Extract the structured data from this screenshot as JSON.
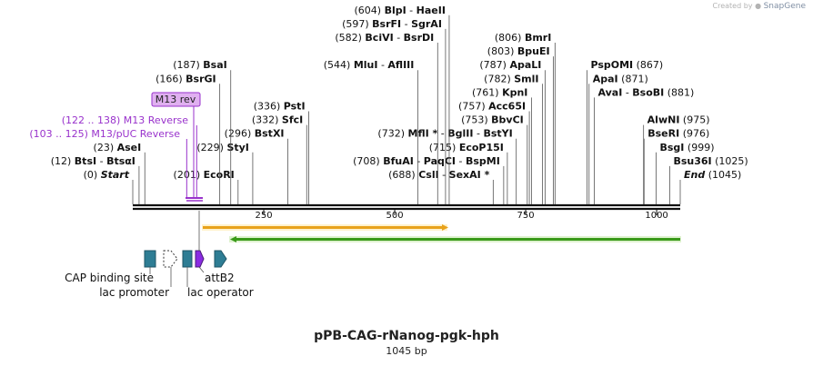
{
  "header": {
    "credit_prefix": "Created by",
    "credit_brand": "SnapGene"
  },
  "plasmid": {
    "name": "pPB-CAG-rNanog-pgk-hph",
    "length_label": "1045 bp",
    "length": 1045
  },
  "colors": {
    "feature_blue": "#2e7d94",
    "operator_purple": "#8a2be2",
    "primer_purple": "#9932cc",
    "primer_box_fill": "#e0b0f0",
    "orange_arrow": "#e8a21b",
    "green_arrow": "#3a9a1a",
    "text": "#111111"
  },
  "ruler": {
    "ticks": [
      {
        "bp": 250,
        "label": "250"
      },
      {
        "bp": 500,
        "label": "500"
      },
      {
        "bp": 750,
        "label": "750"
      },
      {
        "bp": 1000,
        "label": "1000"
      }
    ]
  },
  "enzymes": [
    {
      "id": "start",
      "bp": 0,
      "pos": "(0)",
      "names": [
        "Start"
      ],
      "italic": true,
      "side": "left",
      "row": 0
    },
    {
      "id": "btsi",
      "bp": 12,
      "pos": "(12)",
      "names": [
        "BtsI",
        "BtsαI"
      ],
      "side": "left",
      "row": 1
    },
    {
      "id": "asei",
      "bp": 23,
      "pos": "(23)",
      "names": [
        "AseI"
      ],
      "side": "left",
      "row": 2
    },
    {
      "id": "ecori",
      "bp": 201,
      "pos": "(201)",
      "names": [
        "EcoRI"
      ],
      "side": "left",
      "row": 0
    },
    {
      "id": "styi",
      "bp": 229,
      "pos": "(229)",
      "names": [
        "StyI"
      ],
      "side": "left",
      "row": 2
    },
    {
      "id": "bstxi",
      "bp": 296,
      "pos": "(296)",
      "names": [
        "BstXI"
      ],
      "side": "left",
      "row": 3
    },
    {
      "id": "bsrgi",
      "bp": 166,
      "pos": "(166)",
      "names": [
        "BsrGI"
      ],
      "side": "left",
      "row": 7
    },
    {
      "id": "bsai",
      "bp": 187,
      "pos": "(187)",
      "names": [
        "BsaI"
      ],
      "side": "left",
      "row": 8
    },
    {
      "id": "sfci",
      "bp": 332,
      "pos": "(332)",
      "names": [
        "SfcI"
      ],
      "side": "left",
      "row": 4
    },
    {
      "id": "psti",
      "bp": 336,
      "pos": "(336)",
      "names": [
        "PstI"
      ],
      "side": "left",
      "row": 5
    },
    {
      "id": "csli",
      "bp": 688,
      "pos": "(688)",
      "names": [
        "CslI",
        "SexAI *"
      ],
      "side": "left",
      "row": 0
    },
    {
      "id": "bfuai",
      "bp": 708,
      "pos": "(708)",
      "names": [
        "BfuAI",
        "PaqCI",
        "BspMI"
      ],
      "side": "left",
      "row": 1
    },
    {
      "id": "ecop15i",
      "bp": 715,
      "pos": "(715)",
      "names": [
        "EcoP15I"
      ],
      "side": "left",
      "row": 2
    },
    {
      "id": "mfli",
      "bp": 732,
      "pos": "(732)",
      "names": [
        "MflI *",
        "BglII",
        "BstYI"
      ],
      "side": "left",
      "row": 3
    },
    {
      "id": "bbvci",
      "bp": 753,
      "pos": "(753)",
      "names": [
        "BbvCI"
      ],
      "side": "left",
      "row": 4
    },
    {
      "id": "acc65i",
      "bp": 757,
      "pos": "(757)",
      "names": [
        "Acc65I"
      ],
      "side": "left",
      "row": 5
    },
    {
      "id": "kpni",
      "bp": 761,
      "pos": "(761)",
      "names": [
        "KpnI"
      ],
      "side": "left",
      "row": 6
    },
    {
      "id": "smli",
      "bp": 782,
      "pos": "(782)",
      "names": [
        "SmlI"
      ],
      "side": "left",
      "row": 7
    },
    {
      "id": "apali",
      "bp": 787,
      "pos": "(787)",
      "names": [
        "ApaLI"
      ],
      "side": "left",
      "row": 8
    },
    {
      "id": "bpuei",
      "bp": 803,
      "pos": "(803)",
      "names": [
        "BpuEI"
      ],
      "side": "left",
      "row": 9
    },
    {
      "id": "bmri",
      "bp": 806,
      "pos": "(806)",
      "names": [
        "BmrI"
      ],
      "side": "left",
      "row": 10
    },
    {
      "id": "mlui",
      "bp": 544,
      "pos": "(544)",
      "names": [
        "MluI",
        "AflIII"
      ],
      "side": "left",
      "row": 8
    },
    {
      "id": "bcivi",
      "bp": 582,
      "pos": "(582)",
      "names": [
        "BciVI",
        "BsrDI"
      ],
      "side": "left",
      "row": 10
    },
    {
      "id": "bsrfi",
      "bp": 597,
      "pos": "(597)",
      "names": [
        "BsrFI",
        "SgrAI"
      ],
      "side": "left",
      "row": 11
    },
    {
      "id": "blpi",
      "bp": 604,
      "pos": "(604)",
      "names": [
        "BlpI",
        "HaeII"
      ],
      "side": "left",
      "row": 12
    },
    {
      "id": "end",
      "bp": 1045,
      "pos": "(1045)",
      "names": [
        "End"
      ],
      "italic": true,
      "side": "right",
      "row": 0
    },
    {
      "id": "bsu36i",
      "bp": 1025,
      "pos": "(1025)",
      "names": [
        "Bsu36I"
      ],
      "side": "right",
      "row": 1
    },
    {
      "id": "bsgi",
      "bp": 999,
      "pos": "(999)",
      "names": [
        "BsgI"
      ],
      "side": "right",
      "row": 2
    },
    {
      "id": "beseri",
      "bp": 976,
      "pos": "(976)",
      "names": [
        "BseRI"
      ],
      "side": "right",
      "row": 3
    },
    {
      "id": "alwni",
      "bp": 975,
      "pos": "(975)",
      "names": [
        "AlwNI"
      ],
      "side": "right",
      "row": 4
    },
    {
      "id": "avai",
      "bp": 881,
      "pos": "(881)",
      "names": [
        "AvaI",
        "BsoBI"
      ],
      "side": "right",
      "row": 6
    },
    {
      "id": "apai",
      "bp": 871,
      "pos": "(871)",
      "names": [
        "ApaI"
      ],
      "side": "right",
      "row": 7
    },
    {
      "id": "pspomi",
      "bp": 867,
      "pos": "(867)",
      "names": [
        "PspOMI"
      ],
      "side": "right",
      "row": 8
    }
  ],
  "primers": [
    {
      "id": "m13-puc-reverse",
      "label": "(103 .. 125)  M13/pUC Reverse"
    },
    {
      "id": "m13-reverse",
      "label": "(122 .. 138)  M13 Reverse"
    },
    {
      "id": "m13-rev",
      "label": "M13 rev"
    }
  ],
  "features": [
    {
      "id": "cap-binding-site",
      "label": "CAP binding site",
      "shape": "box"
    },
    {
      "id": "lac-promoter",
      "label": "lac promoter",
      "shape": "arrow"
    },
    {
      "id": "lac-operator",
      "label": "lac operator",
      "shape": "box"
    },
    {
      "id": "attb2",
      "label": "attB2",
      "shape": "arrow"
    },
    {
      "id": "extra",
      "label": "",
      "shape": "arrow"
    }
  ]
}
